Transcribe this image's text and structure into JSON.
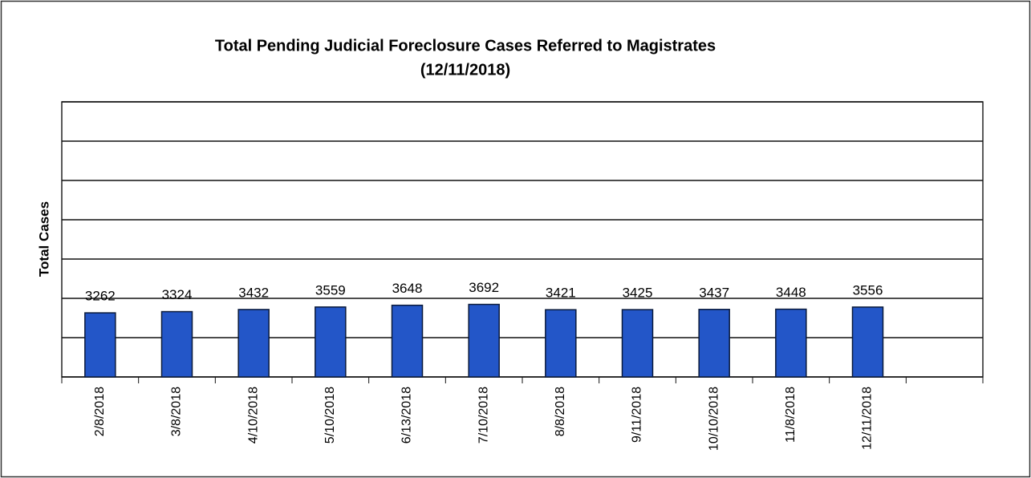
{
  "chart_data": {
    "type": "bar",
    "title": "Total Pending Judicial Foreclosure Cases Referred to Magistrates",
    "subtitle": "(12/11/2018)",
    "y_label": "Total Cases",
    "categories": [
      "2/8/2018",
      "3/8/2018",
      "4/10/2018",
      "5/10/2018",
      "6/13/2018",
      "7/10/2018",
      "8/8/2018",
      "9/11/2018",
      "10/10/2018",
      "11/8/2018",
      "12/11/2018",
      null
    ],
    "values": [
      3262,
      3324,
      3432,
      3559,
      3648,
      3692,
      3421,
      3425,
      3437,
      3448,
      3556,
      null
    ],
    "color": "#2356c8",
    "ylim": [
      0,
      14000
    ],
    "yticks": [
      0,
      2000,
      4000,
      6000,
      8000,
      10000,
      12000,
      14000
    ],
    "grid": true
  }
}
